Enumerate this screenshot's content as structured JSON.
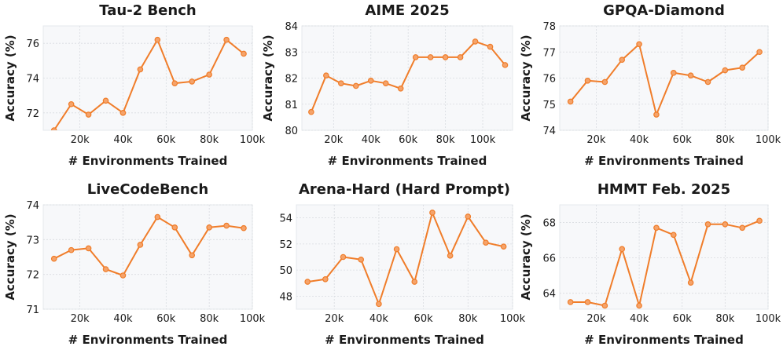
{
  "chart_data": [
    {
      "type": "line",
      "title": "Tau-2 Bench",
      "xlabel": "# Environments Trained",
      "ylabel": "Accuracy (%)",
      "xlim": [
        3000,
        100000
      ],
      "ylim": [
        71,
        77
      ],
      "xticks": [
        20000,
        40000,
        60000,
        80000,
        100000
      ],
      "xtick_labels": [
        "20k",
        "40k",
        "60k",
        "80k",
        "100k"
      ],
      "yticks": [
        72,
        74,
        76
      ],
      "ytick_labels": [
        "72",
        "74",
        "76"
      ],
      "grid": true,
      "series": [
        {
          "color": "#f07d2a",
          "x": [
            8000,
            16000,
            24000,
            32000,
            40000,
            48000,
            56000,
            64000,
            72000,
            80000,
            88000,
            96000
          ],
          "y": [
            71.0,
            72.5,
            71.9,
            72.7,
            72.0,
            74.5,
            76.2,
            73.7,
            73.8,
            74.2,
            76.2,
            75.4
          ]
        }
      ]
    },
    {
      "type": "line",
      "title": "AIME 2025",
      "xlabel": "# Environments Trained",
      "ylabel": "Accuracy (%)",
      "xlim": [
        3000,
        116000
      ],
      "ylim": [
        80,
        84
      ],
      "xticks": [
        20000,
        40000,
        60000,
        80000,
        100000
      ],
      "xtick_labels": [
        "20k",
        "40k",
        "60k",
        "80k",
        "100k"
      ],
      "yticks": [
        80,
        81,
        82,
        83,
        84
      ],
      "ytick_labels": [
        "80",
        "81",
        "82",
        "83",
        "84"
      ],
      "grid": true,
      "series": [
        {
          "color": "#f07d2a",
          "x": [
            8000,
            16000,
            24000,
            32000,
            40000,
            48000,
            56000,
            64000,
            72000,
            80000,
            88000,
            96000,
            104000,
            112000
          ],
          "y": [
            80.7,
            82.1,
            81.8,
            81.7,
            81.9,
            81.8,
            81.6,
            82.8,
            82.8,
            82.8,
            82.8,
            83.4,
            83.2,
            82.5
          ]
        }
      ]
    },
    {
      "type": "line",
      "title": "GPQA-Diamond",
      "xlabel": "# Environments Trained",
      "ylabel": "Accuracy (%)",
      "xlim": [
        3000,
        100000
      ],
      "ylim": [
        74,
        78
      ],
      "xticks": [
        20000,
        40000,
        60000,
        80000,
        100000
      ],
      "xtick_labels": [
        "20k",
        "40k",
        "60k",
        "80k",
        "100k"
      ],
      "yticks": [
        74,
        75,
        76,
        77,
        78
      ],
      "ytick_labels": [
        "74",
        "75",
        "76",
        "77",
        "78"
      ],
      "grid": true,
      "series": [
        {
          "color": "#f07d2a",
          "x": [
            8000,
            16000,
            24000,
            32000,
            40000,
            48000,
            56000,
            64000,
            72000,
            80000,
            88000,
            96000
          ],
          "y": [
            75.1,
            75.9,
            75.85,
            76.7,
            77.3,
            74.6,
            76.2,
            76.1,
            75.85,
            76.3,
            76.4,
            77.0
          ]
        }
      ]
    },
    {
      "type": "line",
      "title": "LiveCodeBench",
      "xlabel": "# Environments Trained",
      "ylabel": "Accuracy (%)",
      "xlim": [
        3000,
        100000
      ],
      "ylim": [
        71,
        74
      ],
      "xticks": [
        20000,
        40000,
        60000,
        80000,
        100000
      ],
      "xtick_labels": [
        "20k",
        "40k",
        "60k",
        "80k",
        "100k"
      ],
      "yticks": [
        71,
        72,
        73,
        74
      ],
      "ytick_labels": [
        "71",
        "72",
        "73",
        "74"
      ],
      "grid": true,
      "series": [
        {
          "color": "#f07d2a",
          "x": [
            8000,
            16000,
            24000,
            32000,
            40000,
            48000,
            56000,
            64000,
            72000,
            80000,
            88000,
            96000
          ],
          "y": [
            72.45,
            72.7,
            72.75,
            72.15,
            71.97,
            72.85,
            73.65,
            73.35,
            72.55,
            73.35,
            73.4,
            73.33
          ]
        }
      ]
    },
    {
      "type": "line",
      "title": "Arena-Hard (Hard Prompt)",
      "xlabel": "# Environments Trained",
      "ylabel": "",
      "xlim": [
        3000,
        100000
      ],
      "ylim": [
        47,
        55
      ],
      "xticks": [
        20000,
        40000,
        60000,
        80000,
        100000
      ],
      "xtick_labels": [
        "20k",
        "40k",
        "60k",
        "80k",
        "100k"
      ],
      "yticks": [
        48,
        50,
        52,
        54
      ],
      "ytick_labels": [
        "48",
        "50",
        "52",
        "54"
      ],
      "grid": true,
      "series": [
        {
          "color": "#f07d2a",
          "x": [
            8000,
            16000,
            24000,
            32000,
            40000,
            48000,
            56000,
            64000,
            72000,
            80000,
            88000,
            96000
          ],
          "y": [
            49.1,
            49.3,
            51.0,
            50.8,
            47.4,
            51.6,
            49.1,
            54.4,
            51.1,
            54.1,
            52.1,
            51.8
          ]
        }
      ]
    },
    {
      "type": "line",
      "title": "HMMT Feb. 2025",
      "xlabel": "# Environments Trained",
      "ylabel": "Accuracy (%)",
      "xlim": [
        3000,
        100000
      ],
      "ylim": [
        63.1,
        69
      ],
      "xticks": [
        20000,
        40000,
        60000,
        80000,
        100000
      ],
      "xtick_labels": [
        "20k",
        "40k",
        "60k",
        "80k",
        "100k"
      ],
      "yticks": [
        64,
        66,
        68
      ],
      "ytick_labels": [
        "64",
        "66",
        "68"
      ],
      "grid": true,
      "series": [
        {
          "color": "#f07d2a",
          "x": [
            8000,
            16000,
            24000,
            32000,
            40000,
            48000,
            56000,
            64000,
            72000,
            80000,
            88000,
            96000
          ],
          "y": [
            63.5,
            63.5,
            63.3,
            66.5,
            63.3,
            67.7,
            67.3,
            64.6,
            67.9,
            67.9,
            67.7,
            68.1
          ]
        }
      ]
    }
  ]
}
